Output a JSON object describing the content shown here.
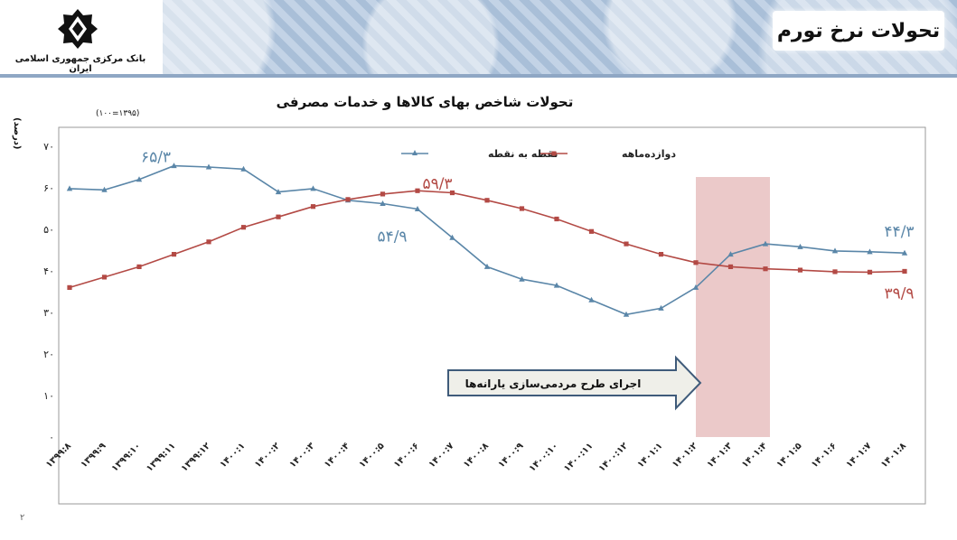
{
  "header": {
    "title": "تحولات نرخ تورم",
    "bank_name": "بانک مرکزی جمهوری اسلامی ایران"
  },
  "page_number": "۲",
  "colors": {
    "point_to_point": "#5a86a8",
    "twelve_month": "#b34a45",
    "band": "#e8c0c0",
    "arrow_fill": "#efefe9",
    "arrow_stroke": "#3f5b7a"
  },
  "chart_data": {
    "type": "line",
    "title": "تحولات شاخص بهای کالاها و خدمات مصرفی",
    "base_note": "(۱۰۰=۱۳۹۵)",
    "ylabel": "(درصد)",
    "ylim": [
      0,
      70
    ],
    "yticks": [
      "۰",
      "۱۰",
      "۲۰",
      "۳۰",
      "۴۰",
      "۵۰",
      "۶۰",
      "۷۰"
    ],
    "categories": [
      "۱۳۹۹:۸",
      "۱۳۹۹:۹",
      "۱۳۹۹:۱۰",
      "۱۳۹۹:۱۱",
      "۱۳۹۹:۱۲",
      "۱۴۰۰:۱",
      "۱۴۰۰:۲",
      "۱۴۰۰:۳",
      "۱۴۰۰:۴",
      "۱۴۰۰:۵",
      "۱۴۰۰:۶",
      "۱۴۰۰:۷",
      "۱۴۰۰:۸",
      "۱۴۰۰:۹",
      "۱۴۰۰:۱۰",
      "۱۴۰۰:۱۱",
      "۱۴۰۰:۱۲",
      "۱۴۰۱:۱",
      "۱۴۰۱:۲",
      "۱۴۰۱:۳",
      "۱۴۰۱:۴",
      "۱۴۰۱:۵",
      "۱۴۰۱:۶",
      "۱۴۰۱:۷",
      "۱۴۰۱:۸"
    ],
    "series": [
      {
        "name": "نقطه به نقطه",
        "key": "point_to_point",
        "values": [
          59.8,
          59.5,
          62.0,
          65.3,
          65.0,
          64.5,
          59.0,
          59.8,
          57.0,
          56.2,
          54.9,
          48.0,
          41.0,
          38.0,
          36.5,
          33.0,
          29.5,
          31.0,
          36.0,
          44.0,
          46.5,
          45.8,
          44.8,
          44.6,
          44.3
        ]
      },
      {
        "name": "دوازده‌ماهه",
        "key": "twelve_month",
        "values": [
          36.0,
          38.5,
          41.0,
          44.0,
          47.0,
          50.5,
          53.0,
          55.5,
          57.2,
          58.5,
          59.3,
          58.8,
          57.0,
          55.0,
          52.5,
          49.5,
          46.5,
          44.0,
          42.0,
          41.0,
          40.5,
          40.2,
          39.8,
          39.7,
          39.9
        ]
      }
    ],
    "annotations": [
      {
        "text": "۶۵/۳",
        "series": "point_to_point",
        "index": 3
      },
      {
        "text": "۵۹/۳",
        "series": "twelve_month",
        "index": 10
      },
      {
        "text": "۵۴/۹",
        "series": "point_to_point",
        "index": 10
      },
      {
        "text": "۴۴/۳",
        "series": "point_to_point",
        "index": 24
      },
      {
        "text": "۳۹/۹",
        "series": "twelve_month",
        "index": 24
      }
    ],
    "shaded_band": {
      "from_index": 18,
      "to_index": 20
    },
    "arrow_label": "اجرای طرح مردمی‌سازی یارانه‌ها",
    "legend_placement": "top"
  }
}
